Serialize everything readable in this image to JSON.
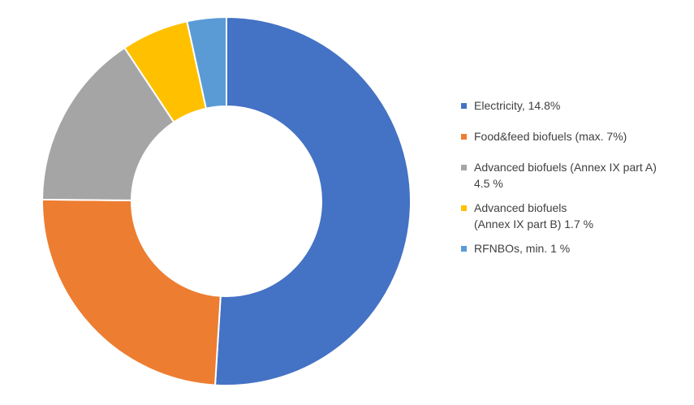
{
  "chart_data": {
    "type": "pie",
    "donut": true,
    "title": "",
    "legend_position": "right",
    "categories": [
      "Electricity, 14.8%",
      "Food&feed biofuels (max. 7%)",
      "Advanced biofuels (Annex IX part A)\n4.5 %",
      "Advanced biofuels\n(Annex IX part B) 1.7 %",
      "RFNBOs, min. 1 %"
    ],
    "values": [
      51.9,
      24.6,
      15.8,
      6.0,
      3.5
    ],
    "colors": [
      "#4472C4",
      "#ED7D31",
      "#A5A5A5",
      "#FFC000",
      "#5B9BD5"
    ]
  }
}
